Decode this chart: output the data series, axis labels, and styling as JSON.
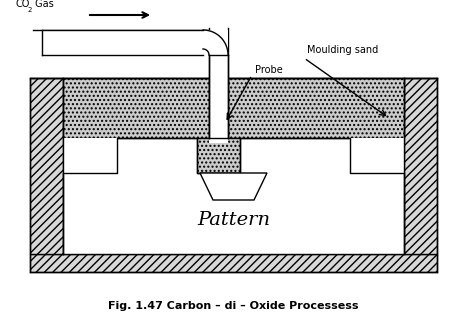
{
  "title": "Fig. 1.47 Carbon – di – Oxide Processess",
  "co2_label": "CO",
  "co2_sub": "2",
  "co2_suffix": " Gas",
  "probe_label": "Probe",
  "sand_label": "Moulding sand",
  "pattern_label": "Pattern",
  "bg_color": "#ffffff",
  "line_color": "#000000",
  "sand_fc": "#cccccc",
  "wall_fc": "#e0e0e0",
  "figsize": [
    4.67,
    3.28
  ],
  "dpi": 100
}
